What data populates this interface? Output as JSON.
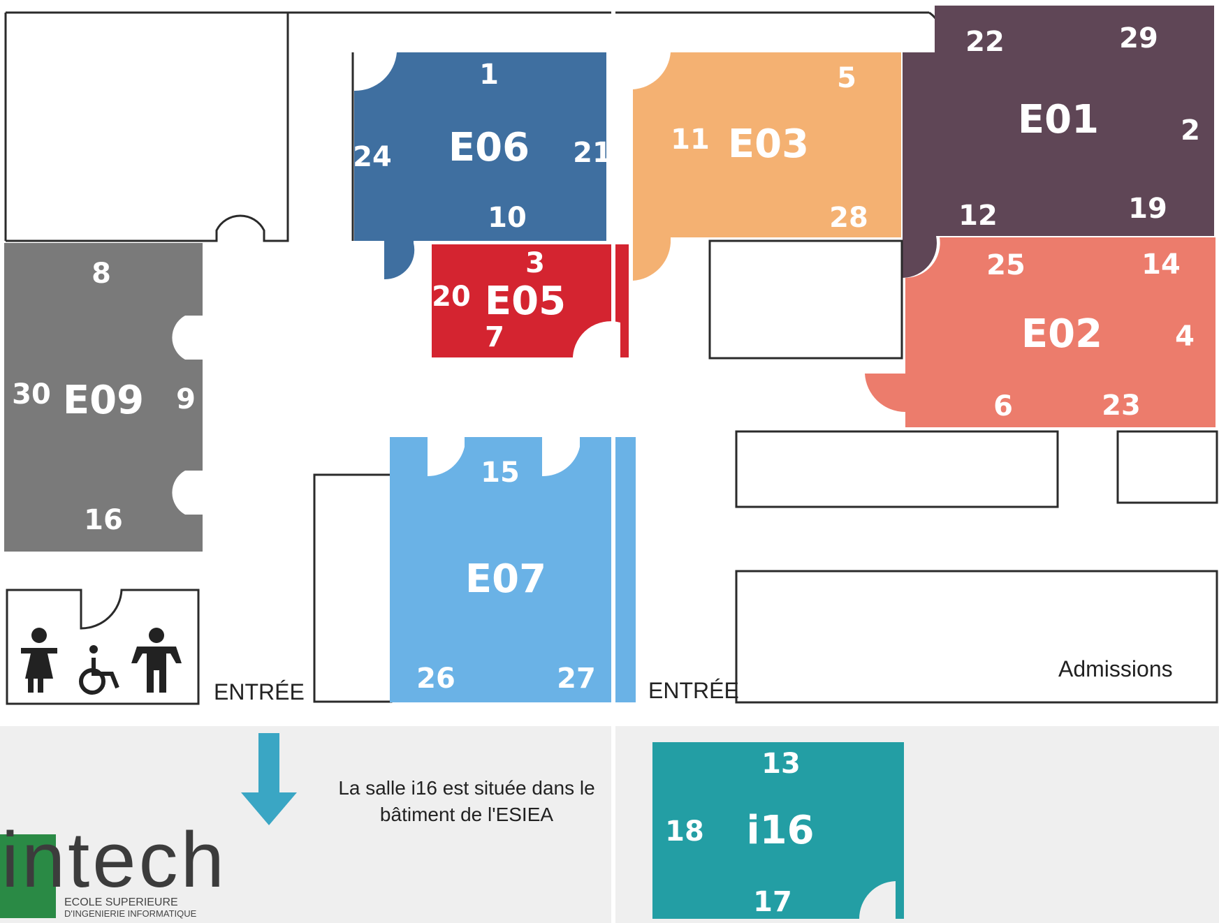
{
  "colors": {
    "E06": "#3f6fa0",
    "E05": "#d42430",
    "E03": "#f4b172",
    "E01": "#5f4656",
    "E02": "#ec7c6c",
    "E09": "#7a7a7a",
    "E07": "#6ab2e6",
    "i16": "#239ea4",
    "arrow": "#3aa6c4",
    "logo_green": "#2a8a45"
  },
  "rooms": [
    {
      "key": "E06",
      "name": "E06",
      "numbers": [
        "1",
        "24",
        "21",
        "10"
      ]
    },
    {
      "key": "E05",
      "name": "E05",
      "numbers": [
        "3",
        "20",
        "7"
      ]
    },
    {
      "key": "E03",
      "name": "E03",
      "numbers": [
        "5",
        "11",
        "28"
      ]
    },
    {
      "key": "E01",
      "name": "E01",
      "numbers": [
        "22",
        "29",
        "2",
        "12",
        "19"
      ]
    },
    {
      "key": "E02",
      "name": "E02",
      "numbers": [
        "25",
        "14",
        "4",
        "6",
        "23"
      ]
    },
    {
      "key": "E09",
      "name": "E09",
      "numbers": [
        "8",
        "30",
        "9",
        "16"
      ]
    },
    {
      "key": "E07",
      "name": "E07",
      "numbers": [
        "15",
        "26",
        "27"
      ]
    },
    {
      "key": "i16",
      "name": "i16",
      "numbers": [
        "13",
        "18",
        "17"
      ]
    }
  ],
  "labels": {
    "entree_left": "ENTRÉE",
    "entree_right": "ENTRÉE",
    "admissions": "Admissions",
    "note_line1": "La salle i16 est située dans le",
    "note_line2": "bâtiment de l'ESIEA"
  },
  "icons": [
    "woman-toilet-icon",
    "wheelchair-icon",
    "man-toilet-icon",
    "down-arrow-icon"
  ],
  "logo": {
    "wordmark": "intech",
    "subtitle1": "ECOLE SUPERIEURE",
    "subtitle2": "D'INGENIERIE INFORMATIQUE"
  }
}
